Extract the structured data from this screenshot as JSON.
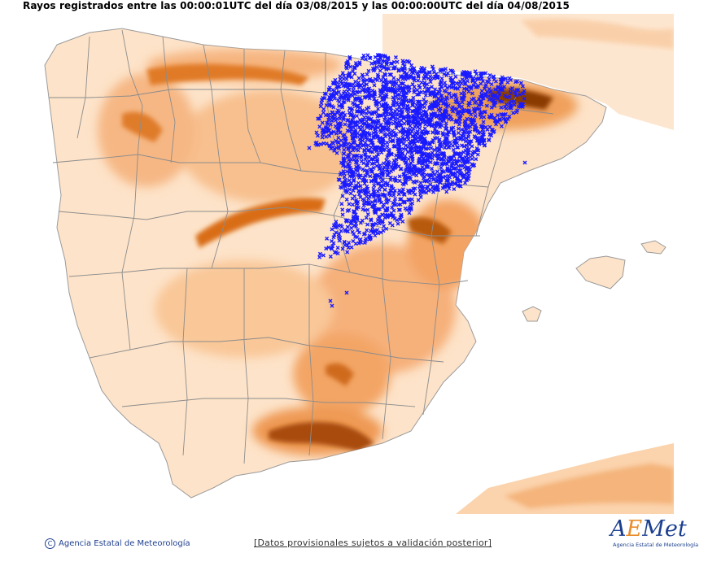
{
  "title": "Rayos registrados entre las 00:00:01UTC del día 03/08/2015 y las 00:00:00UTC del día 04/08/2015",
  "footer": {
    "copyright_symbol": "C",
    "agency": "Agencia Estatal de Meteorología",
    "note": "[Datos provisionales sujetos a validación posterior]"
  },
  "logo": {
    "letter_a": "A",
    "letter_e": "E",
    "rest": "Met",
    "subtitle": "Agencia Estatal de Meteorología"
  },
  "legend_colors": {
    "lightning": "#1a1aff",
    "sea": "#ffffff",
    "land_low": "#fde3c9",
    "land_mid": "#f7b27a",
    "land_high": "#d86a10",
    "land_peak": "#8a3b05",
    "boundaries": "#8c8c8c"
  },
  "lightning_marker": "x",
  "lightning_region": "Nordeste peninsular (Aragón, Navarra, La Rioja, Castilla y León oriental, Castilla-La Mancha nororiental)"
}
